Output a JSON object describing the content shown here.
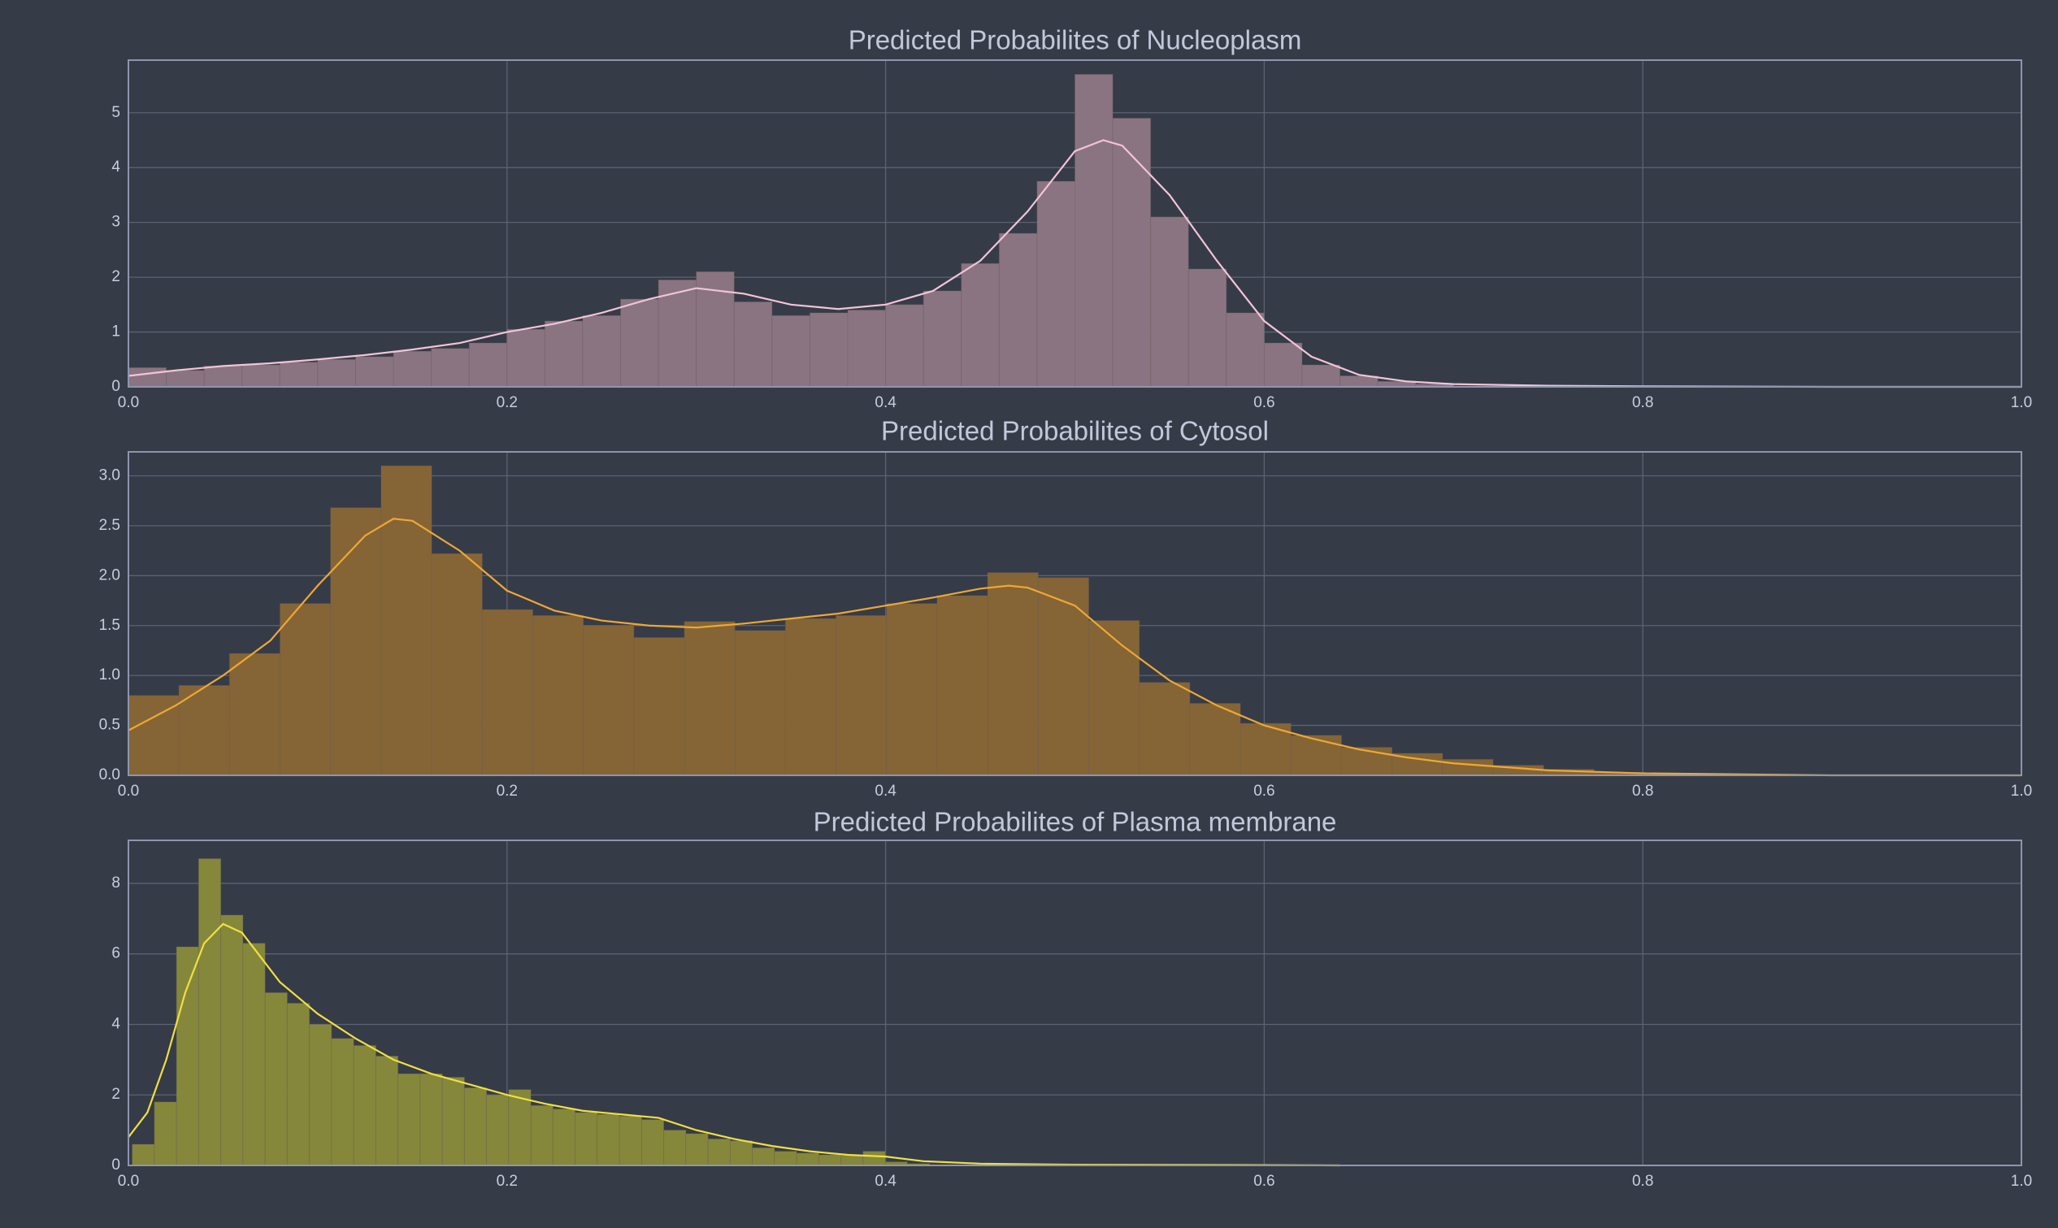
{
  "chart_data": [
    {
      "type": "histogram",
      "title": "Predicted Probabilites of Nucleoplasm",
      "color": "#8a7482",
      "bins": [
        0,
        0.02,
        0.04,
        0.06,
        0.08,
        0.1,
        0.12,
        0.14,
        0.16,
        0.18,
        0.2,
        0.22,
        0.24,
        0.26,
        0.28,
        0.3,
        0.32,
        0.34,
        0.36,
        0.38,
        0.4,
        0.42,
        0.44,
        0.46,
        0.48,
        0.5,
        0.52,
        0.54,
        0.56,
        0.58,
        0.6,
        0.62,
        0.64,
        0.66,
        0.68,
        0.7
      ],
      "values": [
        0.35,
        0.3,
        0.38,
        0.4,
        0.45,
        0.5,
        0.55,
        0.65,
        0.7,
        0.8,
        1.05,
        1.2,
        1.3,
        1.6,
        1.95,
        2.1,
        1.55,
        1.3,
        1.35,
        1.4,
        1.5,
        1.75,
        2.25,
        2.8,
        3.75,
        5.7,
        4.9,
        3.1,
        2.15,
        1.35,
        0.8,
        0.4,
        0.2,
        0.1,
        0.05
      ],
      "kde": {
        "color": "#f2c4d6",
        "x": [
          0,
          0.025,
          0.05,
          0.075,
          0.1,
          0.125,
          0.15,
          0.175,
          0.2,
          0.225,
          0.25,
          0.275,
          0.3,
          0.325,
          0.35,
          0.375,
          0.4,
          0.425,
          0.45,
          0.475,
          0.5,
          0.515,
          0.525,
          0.55,
          0.575,
          0.6,
          0.625,
          0.65,
          0.675,
          0.7,
          0.75,
          0.8,
          0.9,
          1.0
        ],
        "values": [
          0.2,
          0.3,
          0.38,
          0.43,
          0.5,
          0.58,
          0.68,
          0.8,
          1.0,
          1.15,
          1.35,
          1.6,
          1.8,
          1.7,
          1.5,
          1.42,
          1.5,
          1.75,
          2.3,
          3.2,
          4.3,
          4.5,
          4.4,
          3.5,
          2.3,
          1.2,
          0.55,
          0.22,
          0.1,
          0.05,
          0.02,
          0.01,
          0,
          0
        ]
      },
      "xlim": [
        0,
        1
      ],
      "xticks": [
        {
          "value": 0,
          "label": "0.0"
        },
        0.2,
        0.4,
        0.6,
        0.8,
        {
          "value": 1,
          "label": "1.0"
        }
      ],
      "ylim": [
        0,
        5.96
      ],
      "yticks": [
        0,
        1,
        2,
        3,
        4,
        5
      ],
      "grid": true
    },
    {
      "type": "histogram",
      "title": "Predicted Probabilites of Cytosol",
      "color": "#856536",
      "bins": [
        0,
        0.0267,
        0.0534,
        0.0801,
        0.1068,
        0.1335,
        0.1602,
        0.1869,
        0.2136,
        0.2403,
        0.267,
        0.2937,
        0.3204,
        0.3471,
        0.3738,
        0.4005,
        0.4272,
        0.4539,
        0.4806,
        0.5073,
        0.534,
        0.5607,
        0.5874,
        0.6141,
        0.6408,
        0.6675,
        0.6942,
        0.7209,
        0.7476,
        0.7743,
        0.801,
        0.8277
      ],
      "values": [
        0.8,
        0.9,
        1.22,
        1.72,
        2.68,
        3.1,
        2.22,
        1.66,
        1.6,
        1.5,
        1.38,
        1.54,
        1.45,
        1.57,
        1.6,
        1.72,
        1.8,
        2.03,
        1.98,
        1.55,
        0.93,
        0.72,
        0.52,
        0.4,
        0.28,
        0.22,
        0.16,
        0.1,
        0.06,
        0.03,
        0.02
      ],
      "kde": {
        "color": "#eea832",
        "x": [
          0,
          0.025,
          0.05,
          0.075,
          0.1,
          0.125,
          0.14,
          0.15,
          0.175,
          0.2,
          0.225,
          0.25,
          0.275,
          0.3,
          0.325,
          0.35,
          0.375,
          0.4,
          0.425,
          0.45,
          0.465,
          0.475,
          0.5,
          0.525,
          0.55,
          0.575,
          0.6,
          0.625,
          0.65,
          0.675,
          0.7,
          0.75,
          0.8,
          0.85,
          0.9,
          1.0
        ],
        "values": [
          0.45,
          0.7,
          1.0,
          1.35,
          1.9,
          2.4,
          2.57,
          2.55,
          2.25,
          1.85,
          1.65,
          1.55,
          1.5,
          1.48,
          1.52,
          1.57,
          1.62,
          1.7,
          1.78,
          1.87,
          1.9,
          1.88,
          1.7,
          1.3,
          0.95,
          0.7,
          0.5,
          0.37,
          0.26,
          0.18,
          0.12,
          0.05,
          0.02,
          0.01,
          0,
          0
        ]
      },
      "xlim": [
        0,
        1
      ],
      "xticks": [
        {
          "value": 0,
          "label": "0.0"
        },
        0.2,
        0.4,
        0.6,
        0.8,
        {
          "value": 1,
          "label": "1.0"
        }
      ],
      "ylim": [
        0,
        3.24
      ],
      "yticks": [
        {
          "value": 0,
          "label": "0.0"
        },
        0.5,
        {
          "value": 1,
          "label": "1.0"
        },
        1.5,
        {
          "value": 2,
          "label": "2.0"
        },
        2.5,
        {
          "value": 3,
          "label": "3.0"
        }
      ],
      "grid": true
    },
    {
      "type": "histogram",
      "title": "Predicted Probabilites of Plasma membrane",
      "color": "#85883a",
      "bins": [
        0.002,
        0.0137,
        0.0254,
        0.0371,
        0.0488,
        0.0605,
        0.0722,
        0.0839,
        0.0956,
        0.1073,
        0.119,
        0.1307,
        0.1424,
        0.1541,
        0.1658,
        0.1775,
        0.1892,
        0.2009,
        0.2126,
        0.2243,
        0.236,
        0.2477,
        0.2594,
        0.2711,
        0.2828,
        0.2945,
        0.3062,
        0.3179,
        0.3296,
        0.3413,
        0.353,
        0.3647,
        0.3764,
        0.3881,
        0.3998,
        0.4115,
        0.4232
      ],
      "values": [
        0.6,
        1.8,
        6.2,
        8.7,
        7.1,
        6.3,
        4.9,
        4.6,
        4.0,
        3.6,
        3.4,
        3.1,
        2.6,
        2.6,
        2.5,
        2.2,
        2.0,
        2.15,
        1.7,
        1.6,
        1.5,
        1.45,
        1.4,
        1.3,
        1.0,
        0.9,
        0.75,
        0.7,
        0.5,
        0.4,
        0.35,
        0.3,
        0.28,
        0.4,
        0.1,
        0.05
      ],
      "kde": {
        "color": "#efe040",
        "x": [
          0,
          0.01,
          0.02,
          0.03,
          0.04,
          0.05,
          0.06,
          0.07,
          0.08,
          0.1,
          0.12,
          0.14,
          0.16,
          0.18,
          0.2,
          0.22,
          0.24,
          0.26,
          0.28,
          0.3,
          0.32,
          0.34,
          0.36,
          0.38,
          0.4,
          0.42,
          0.45,
          0.5,
          0.6,
          0.64
        ],
        "values": [
          0.8,
          1.5,
          3.0,
          4.9,
          6.3,
          6.85,
          6.6,
          5.9,
          5.2,
          4.3,
          3.6,
          3.0,
          2.6,
          2.3,
          2.0,
          1.75,
          1.55,
          1.45,
          1.35,
          1.0,
          0.75,
          0.55,
          0.4,
          0.3,
          0.25,
          0.12,
          0.05,
          0.02,
          0.01,
          0
        ]
      },
      "xlim": [
        0,
        1
      ],
      "xticks": [
        {
          "value": 0,
          "label": "0.0"
        },
        0.2,
        0.4,
        0.6,
        0.8,
        {
          "value": 1,
          "label": "1.0"
        }
      ],
      "ylim": [
        0,
        9.22
      ],
      "yticks": [
        0,
        2,
        4,
        6,
        8
      ],
      "grid": true
    }
  ]
}
